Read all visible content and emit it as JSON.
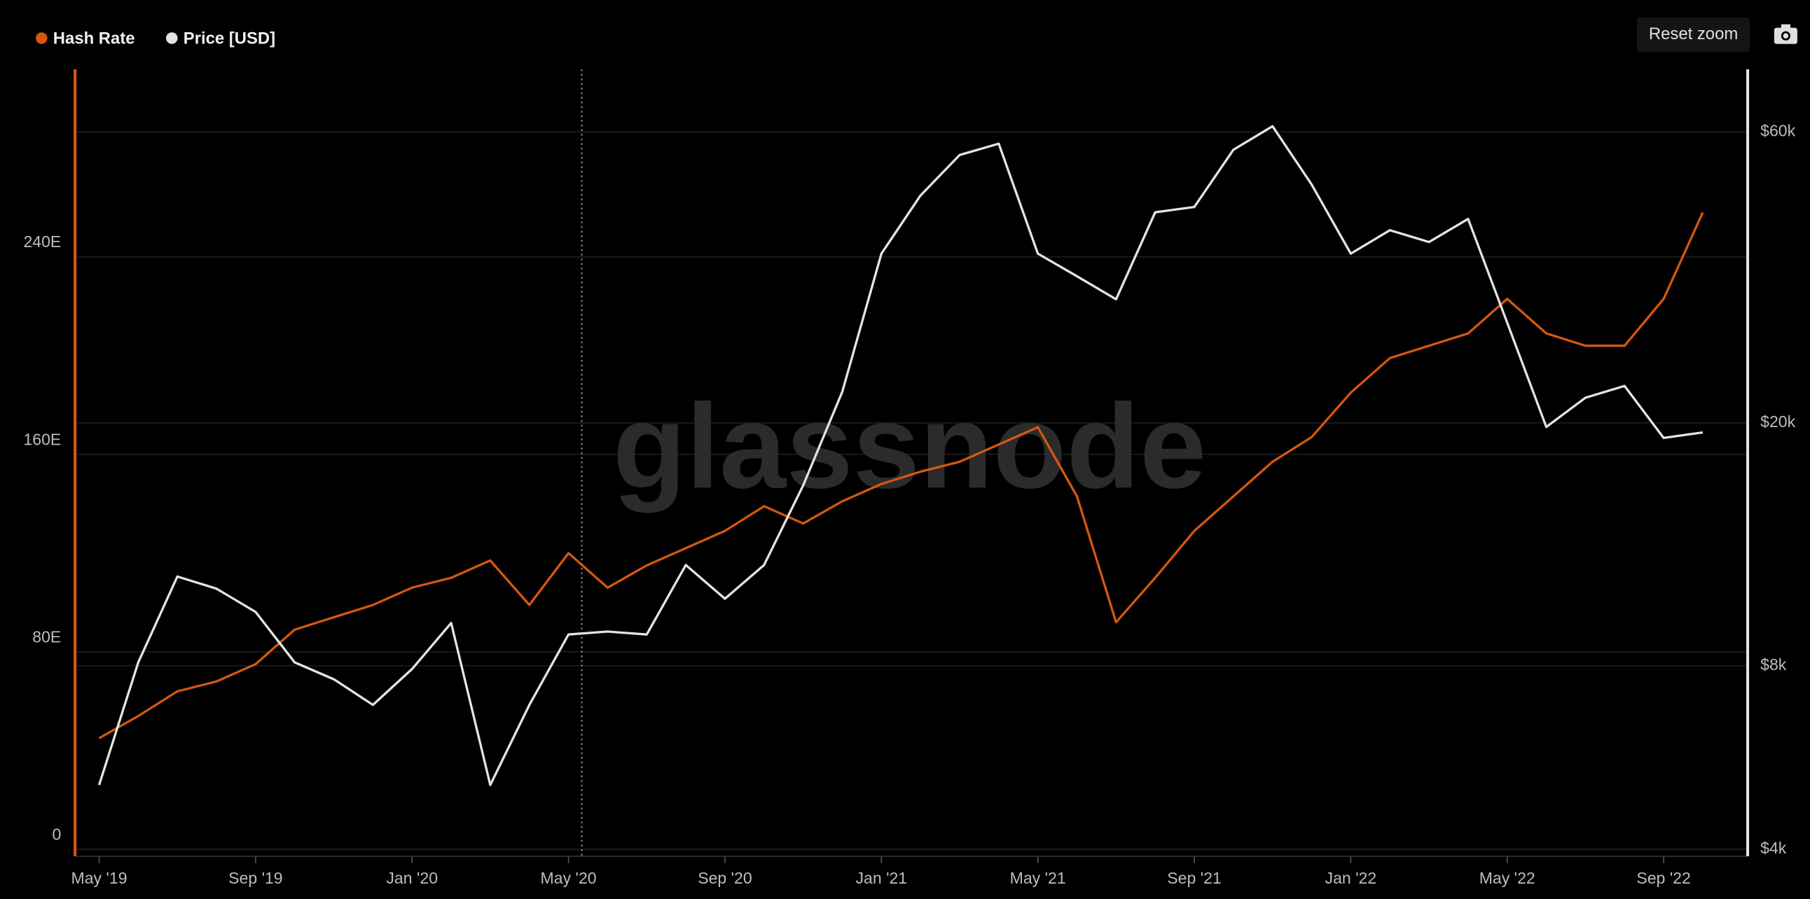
{
  "chart_data": {
    "type": "line",
    "watermark": "glassnode",
    "button": "Reset zoom",
    "x": [
      "2019-05",
      "2019-06",
      "2019-07",
      "2019-08",
      "2019-09",
      "2019-10",
      "2019-11",
      "2019-12",
      "2020-01",
      "2020-02",
      "2020-03",
      "2020-04",
      "2020-05",
      "2020-06",
      "2020-07",
      "2020-08",
      "2020-09",
      "2020-10",
      "2020-11",
      "2020-12",
      "2021-01",
      "2021-02",
      "2021-03",
      "2021-04",
      "2021-05",
      "2021-06",
      "2021-07",
      "2021-08",
      "2021-09",
      "2021-10",
      "2021-11",
      "2021-12",
      "2022-01",
      "2022-02",
      "2022-03",
      "2022-04",
      "2022-05",
      "2022-06",
      "2022-07",
      "2022-08",
      "2022-09",
      "2022-10"
    ],
    "series": [
      {
        "name": "Hash Rate",
        "color": "#d4580f",
        "values": [
          45,
          54,
          64,
          68,
          75,
          89,
          94,
          99,
          106,
          110,
          117,
          99,
          120,
          106,
          115,
          122,
          129,
          139,
          132,
          141,
          148,
          153,
          157,
          164,
          171,
          143,
          92,
          110,
          129,
          143,
          157,
          167,
          185,
          199,
          204,
          209,
          223,
          209,
          204,
          204,
          223,
          258
        ]
      },
      {
        "name": "Price [USD]",
        "color": "#e4e4e4",
        "axis": "y2",
        "values": [
          5100,
          8100,
          11200,
          10700,
          9800,
          8100,
          7600,
          6900,
          7900,
          9400,
          5100,
          6900,
          9000,
          9100,
          9000,
          11700,
          10300,
          11700,
          15800,
          22500,
          37900,
          47200,
          55000,
          57400,
          37900,
          34800,
          31900,
          44300,
          45200,
          56100,
          61300,
          49200,
          37900,
          41400,
          39600,
          43200,
          29200,
          19700,
          22000,
          23000,
          18900,
          19300
        ]
      }
    ],
    "xlim": [
      "2019-04",
      "2022-11"
    ],
    "xticks": [
      {
        "value": "2019-05",
        "label": "May '19"
      },
      {
        "value": "2019-09",
        "label": "Sep '19"
      },
      {
        "value": "2020-01",
        "label": "Jan '20"
      },
      {
        "value": "2020-05",
        "label": "May '20"
      },
      {
        "value": "2020-09",
        "label": "Sep '20"
      },
      {
        "value": "2021-01",
        "label": "Jan '21"
      },
      {
        "value": "2021-05",
        "label": "May '21"
      },
      {
        "value": "2021-09",
        "label": "Sep '21"
      },
      {
        "value": "2022-01",
        "label": "Jan '22"
      },
      {
        "value": "2022-05",
        "label": "May '22"
      },
      {
        "value": "2022-09",
        "label": "Sep '22"
      }
    ],
    "ylim": [
      0,
      316
    ],
    "yticks": [
      0,
      {
        "value": 80,
        "label": "80E"
      },
      {
        "value": 160,
        "label": "160E"
      },
      {
        "value": 240,
        "label": "240E"
      }
    ],
    "y2lim": [
      4000,
      76000
    ],
    "y2scale": "log",
    "y2ticks": [
      {
        "value": 4000,
        "label": "$4k"
      },
      {
        "value": 8000,
        "label": "$8k"
      },
      {
        "value": 20000,
        "label": "$20k"
      },
      {
        "value": 60000,
        "label": "$60k"
      }
    ],
    "grid": true,
    "legend": "top-left"
  }
}
